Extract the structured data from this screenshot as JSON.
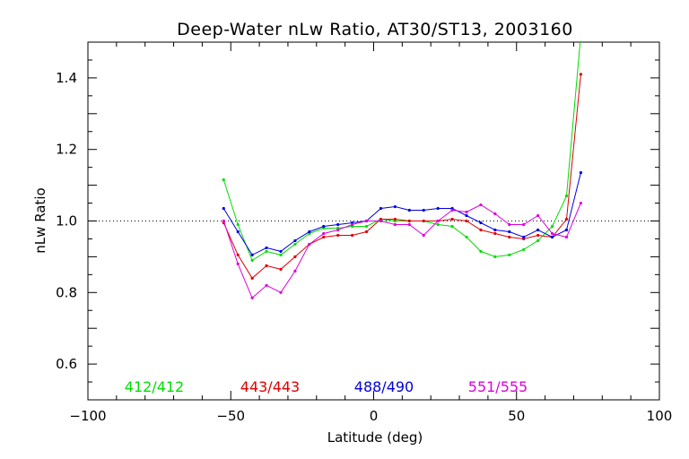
{
  "chart_data": {
    "type": "line",
    "title": "Deep-Water nLw Ratio, AT30/ST13, 2003160",
    "xlabel": "Latitude (deg)",
    "ylabel": "nLw Ratio",
    "xlim": [
      -100,
      100
    ],
    "ylim": [
      0.5,
      1.5
    ],
    "xticks": [
      -100,
      -50,
      0,
      50,
      100
    ],
    "xtick_labels": [
      "−100",
      "−50",
      "0",
      "50",
      "100"
    ],
    "yticks": [
      0.6,
      0.8,
      1.0,
      1.2,
      1.4
    ],
    "ytick_labels": [
      "0.6",
      "0.8",
      "1.0",
      "1.2",
      "1.4"
    ],
    "reference_line": 1.0,
    "grid": false,
    "legend_placement": "bottom",
    "x": [
      -52.5,
      -47.5,
      -42.5,
      -37.5,
      -32.5,
      -27.5,
      -22.5,
      -17.5,
      -12.5,
      -7.5,
      -2.5,
      2.5,
      7.5,
      12.5,
      17.5,
      22.5,
      27.5,
      32.5,
      37.5,
      42.5,
      47.5,
      52.5,
      57.5,
      62.5,
      67.5,
      72.5
    ],
    "series": [
      {
        "name": "412/412",
        "color": "#00dd00",
        "values": [
          1.115,
          0.99,
          0.89,
          0.915,
          0.905,
          0.935,
          0.965,
          0.98,
          0.98,
          0.985,
          0.985,
          1.005,
          1.0,
          1.0,
          1.0,
          0.99,
          0.985,
          0.955,
          0.915,
          0.9,
          0.905,
          0.92,
          0.945,
          0.985,
          1.07,
          1.52
        ]
      },
      {
        "name": "443/443",
        "color": "#dd0000",
        "values": [
          0.995,
          0.905,
          0.84,
          0.875,
          0.865,
          0.9,
          0.935,
          0.955,
          0.96,
          0.96,
          0.97,
          1.005,
          1.005,
          1.0,
          1.0,
          1.0,
          1.005,
          1.0,
          0.975,
          0.965,
          0.955,
          0.95,
          0.96,
          0.955,
          1.005,
          1.41
        ]
      },
      {
        "name": "488/490",
        "color": "#0000dd",
        "values": [
          1.035,
          0.97,
          0.905,
          0.925,
          0.915,
          0.945,
          0.97,
          0.985,
          0.99,
          0.995,
          1.0,
          1.035,
          1.04,
          1.03,
          1.03,
          1.035,
          1.035,
          1.015,
          0.995,
          0.975,
          0.97,
          0.955,
          0.975,
          0.955,
          0.975,
          1.135
        ]
      },
      {
        "name": "551/555",
        "color": "#dd00dd",
        "values": [
          1.0,
          0.88,
          0.785,
          0.82,
          0.8,
          0.86,
          0.935,
          0.965,
          0.975,
          0.99,
          1.0,
          1.0,
          0.99,
          0.99,
          0.96,
          1.0,
          1.03,
          1.025,
          1.045,
          1.02,
          0.99,
          0.99,
          1.015,
          0.965,
          0.955,
          1.05
        ]
      }
    ]
  }
}
